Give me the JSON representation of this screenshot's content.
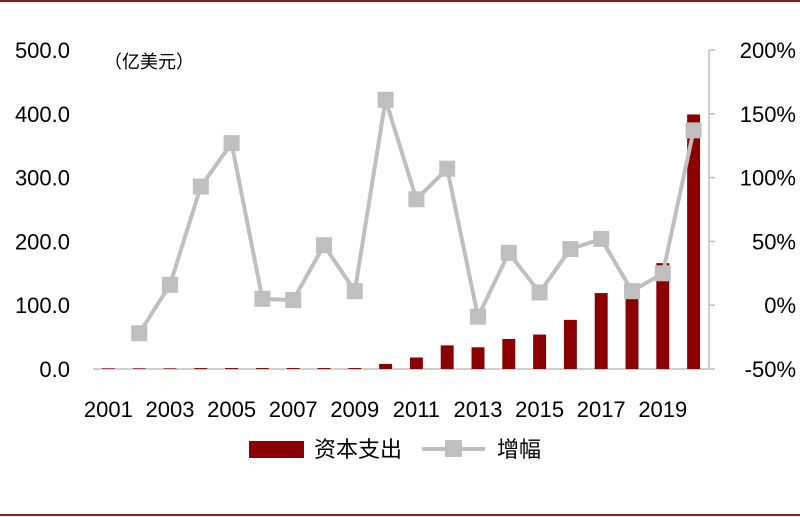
{
  "chart_data": {
    "type": "bar+line",
    "unit_label": "（亿美元）",
    "categories": [
      "2001",
      "2002",
      "2003",
      "2004",
      "2005",
      "2006",
      "2007",
      "2008",
      "2009",
      "2010",
      "2011",
      "2012",
      "2013",
      "2014",
      "2015",
      "2016",
      "2017",
      "2018",
      "2019",
      "2020"
    ],
    "x_tick_labels": [
      "2001",
      "2003",
      "2005",
      "2007",
      "2009",
      "2011",
      "2013",
      "2015",
      "2017",
      "2019"
    ],
    "y_left": {
      "min": 0,
      "max": 500,
      "ticks": [
        "0.0",
        "100.0",
        "200.0",
        "300.0",
        "400.0",
        "500.0"
      ]
    },
    "y_right": {
      "min": -50,
      "max": 200,
      "ticks": [
        "-50%",
        "0%",
        "50%",
        "100%",
        "150%",
        "200%"
      ]
    },
    "series": [
      {
        "name": "资本支出",
        "type": "bar",
        "axis": "left",
        "color": "#8b0000",
        "values": [
          1,
          1,
          1,
          1.5,
          1.5,
          1.5,
          1.5,
          1.5,
          1.5,
          8,
          18,
          37,
          34,
          47,
          54,
          77,
          119,
          127,
          166,
          399
        ]
      },
      {
        "name": "增幅",
        "type": "line",
        "axis": "right",
        "color": "#bfbfbf",
        "values": [
          null,
          -22,
          16,
          93,
          127,
          5,
          4,
          47,
          11,
          161,
          83,
          107,
          -9,
          41,
          10,
          44,
          52,
          11,
          25,
          137
        ]
      }
    ],
    "legend": {
      "position": "bottom"
    }
  }
}
